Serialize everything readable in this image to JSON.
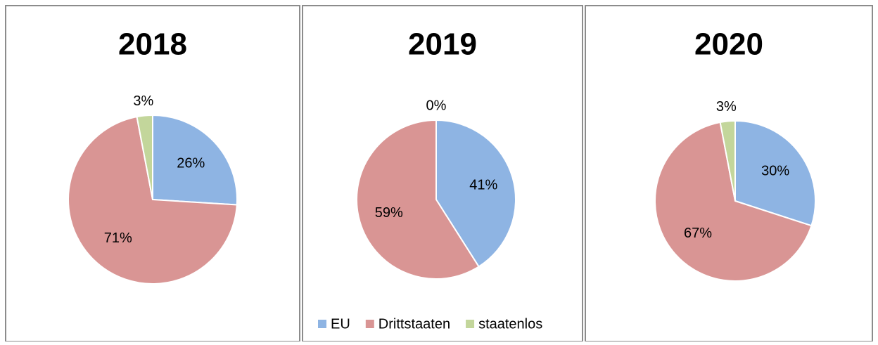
{
  "chart_data": [
    {
      "type": "pie",
      "title": "2018",
      "categories": [
        "EU",
        "Drittstaaten",
        "staatenlos"
      ],
      "colors": [
        "#8eb4e3",
        "#d99594",
        "#c3d69b"
      ],
      "values": [
        26,
        71,
        3
      ],
      "value_labels": [
        "26%",
        "71%",
        "3%"
      ]
    },
    {
      "type": "pie",
      "title": "2019",
      "categories": [
        "EU",
        "Drittstaaten",
        "staatenlos"
      ],
      "colors": [
        "#8eb4e3",
        "#d99594",
        "#c3d69b"
      ],
      "values": [
        41,
        59,
        0
      ],
      "value_labels": [
        "41%",
        "59%",
        "0%"
      ],
      "legend": "bottom"
    },
    {
      "type": "pie",
      "title": "2020",
      "categories": [
        "EU",
        "Drittstaaten",
        "staatenlos"
      ],
      "colors": [
        "#8eb4e3",
        "#d99594",
        "#c3d69b"
      ],
      "values": [
        30,
        67,
        3
      ],
      "value_labels": [
        "30%",
        "67%",
        "3%"
      ]
    }
  ]
}
